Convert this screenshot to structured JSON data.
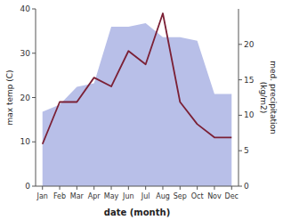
{
  "chart_data": {
    "type": "line",
    "categories": [
      "Jan",
      "Feb",
      "Mar",
      "Apr",
      "May",
      "Jun",
      "Jul",
      "Aug",
      "Sep",
      "Oct",
      "Nov",
      "Dec"
    ],
    "series": [
      {
        "type": "area",
        "axis": "y2",
        "color": "#b8bfe8",
        "values": [
          10.5,
          11.5,
          14.0,
          14.5,
          22.5,
          22.5,
          23.0,
          21.0,
          21.0,
          20.5,
          13.0,
          13.0
        ]
      },
      {
        "type": "line",
        "color": "#7B2035",
        "values": [
          9.5,
          19.0,
          19.0,
          24.5,
          22.5,
          30.5,
          27.5,
          39.0,
          19.0,
          14.0,
          11.0,
          11.0
        ]
      }
    ],
    "xlabel": "date (month)",
    "ylabel": "max temp (C)",
    "y2label": "med. precipitation\n(kg/m2)",
    "ylim": [
      0,
      40
    ],
    "yticks": [
      0,
      10,
      20,
      30,
      40
    ],
    "y2lim": [
      0,
      25
    ],
    "y2ticks": [
      0,
      5,
      10,
      15,
      20
    ],
    "grid": false
  }
}
